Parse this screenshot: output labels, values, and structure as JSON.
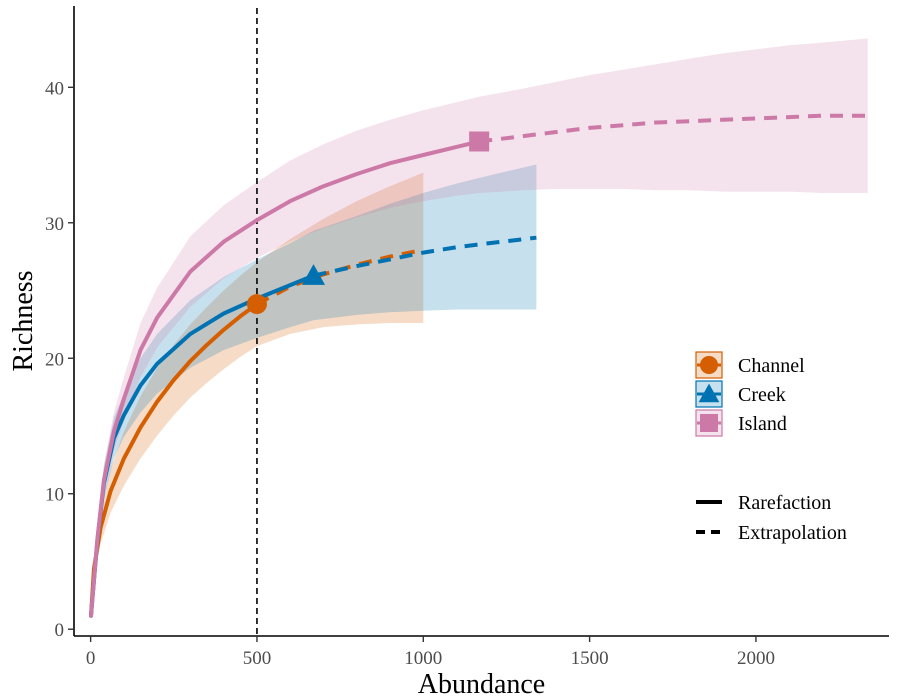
{
  "chart_data": {
    "type": "line",
    "title": "",
    "xlabel": "Abundance",
    "ylabel": "Richness",
    "xlim": [
      -50,
      2400
    ],
    "ylim": [
      -0.5,
      46
    ],
    "x_ticks": [
      0,
      500,
      1000,
      1500,
      2000
    ],
    "x_tick_labels": [
      "0",
      "500",
      "1000",
      "1500",
      "2000"
    ],
    "y_ticks": [
      0,
      10,
      20,
      30,
      40
    ],
    "y_tick_labels": [
      "0",
      "10",
      "20",
      "30",
      "40"
    ],
    "grid": false,
    "reference_line": {
      "x": 500,
      "style": "dashed",
      "color": "#000000"
    },
    "legend_placement": "right",
    "series": [
      {
        "name": "Channel",
        "color": "#D55E00",
        "marker": "circle",
        "observed_point": {
          "x": 500,
          "y": 24
        },
        "rarefaction": {
          "x": [
            1,
            10,
            30,
            60,
            100,
            150,
            200,
            250,
            300,
            350,
            400,
            450,
            500
          ],
          "y": [
            1,
            4.5,
            7.5,
            10.2,
            12.6,
            14.9,
            16.8,
            18.4,
            19.8,
            21.0,
            22.1,
            23.1,
            24.0
          ]
        },
        "extrapolation": {
          "x": [
            500,
            600,
            700,
            800,
            900,
            1000
          ],
          "y": [
            24.0,
            25.3,
            26.2,
            26.9,
            27.5,
            28.0
          ]
        },
        "ci": {
          "x": [
            1,
            10,
            30,
            60,
            100,
            150,
            200,
            250,
            300,
            350,
            400,
            450,
            500,
            600,
            700,
            800,
            900,
            1000
          ],
          "lower": [
            1,
            3.8,
            6.3,
            8.6,
            10.6,
            12.6,
            14.3,
            15.8,
            17.1,
            18.2,
            19.2,
            20.1,
            20.9,
            21.8,
            22.3,
            22.5,
            22.6,
            22.6
          ],
          "upper": [
            1,
            5.2,
            8.7,
            11.8,
            14.6,
            17.2,
            19.3,
            21.0,
            22.5,
            23.8,
            25.0,
            26.1,
            27.1,
            28.8,
            30.3,
            31.6,
            32.7,
            33.7
          ]
        }
      },
      {
        "name": "Creek",
        "color": "#0072B2",
        "marker": "triangle",
        "observed_point": {
          "x": 670,
          "y": 26.1
        },
        "rarefaction": {
          "x": [
            1,
            20,
            40,
            70,
            100,
            150,
            200,
            300,
            400,
            500,
            600,
            670
          ],
          "y": [
            1,
            6.5,
            10.8,
            14.1,
            15.8,
            18.0,
            19.6,
            21.8,
            23.3,
            24.4,
            25.4,
            26.1
          ]
        },
        "extrapolation": {
          "x": [
            670,
            800,
            900,
            1000,
            1100,
            1200,
            1340
          ],
          "y": [
            26.1,
            26.8,
            27.3,
            27.8,
            28.2,
            28.5,
            28.9
          ]
        },
        "ci": {
          "x": [
            1,
            20,
            40,
            70,
            100,
            150,
            200,
            300,
            400,
            500,
            600,
            670,
            800,
            900,
            1000,
            1100,
            1200,
            1340
          ],
          "lower": [
            1,
            5.6,
            9.6,
            12.6,
            14.2,
            16.0,
            17.4,
            19.3,
            20.6,
            21.5,
            22.3,
            22.8,
            23.2,
            23.4,
            23.5,
            23.6,
            23.6,
            23.6
          ],
          "upper": [
            1,
            7.4,
            12.0,
            15.6,
            17.4,
            20.0,
            21.8,
            24.3,
            26.0,
            27.3,
            28.5,
            29.4,
            30.5,
            31.4,
            32.2,
            32.9,
            33.5,
            34.3
          ]
        }
      },
      {
        "name": "Island",
        "color": "#CC79A7",
        "marker": "square",
        "observed_point": {
          "x": 1168,
          "y": 36
        },
        "rarefaction": {
          "x": [
            1,
            20,
            40,
            70,
            100,
            150,
            200,
            300,
            400,
            500,
            600,
            700,
            800,
            900,
            1000,
            1100,
            1168
          ],
          "y": [
            1,
            6.6,
            11.0,
            14.6,
            17.0,
            20.6,
            23.0,
            26.4,
            28.6,
            30.2,
            31.6,
            32.7,
            33.6,
            34.4,
            35.0,
            35.6,
            36.0
          ]
        },
        "extrapolation": {
          "x": [
            1168,
            1300,
            1400,
            1500,
            1600,
            1700,
            1800,
            1900,
            2000,
            2100,
            2200,
            2336
          ],
          "y": [
            36.0,
            36.4,
            36.7,
            37.0,
            37.2,
            37.4,
            37.5,
            37.6,
            37.7,
            37.8,
            37.9,
            37.9
          ]
        },
        "ci": {
          "x": [
            1,
            20,
            40,
            70,
            100,
            150,
            200,
            300,
            400,
            500,
            600,
            700,
            800,
            900,
            1000,
            1100,
            1168,
            1300,
            1400,
            1500,
            1600,
            1700,
            1800,
            1900,
            2000,
            2100,
            2200,
            2336
          ],
          "lower": [
            1,
            5.8,
            9.8,
            13.2,
            15.4,
            18.6,
            20.8,
            23.8,
            25.9,
            27.4,
            28.6,
            29.6,
            30.4,
            31.1,
            31.6,
            32.0,
            32.2,
            32.4,
            32.5,
            32.5,
            32.5,
            32.4,
            32.4,
            32.3,
            32.3,
            32.3,
            32.2,
            32.2
          ],
          "upper": [
            1,
            7.4,
            12.2,
            16.0,
            18.6,
            22.6,
            25.2,
            29.0,
            31.3,
            33.0,
            34.6,
            35.8,
            36.8,
            37.6,
            38.3,
            38.9,
            39.3,
            39.9,
            40.4,
            40.9,
            41.3,
            41.7,
            42.1,
            42.5,
            42.8,
            43.1,
            43.3,
            43.6
          ]
        }
      }
    ],
    "legend_lines": [
      {
        "label": "Rarefaction",
        "style": "solid"
      },
      {
        "label": "Extrapolation",
        "style": "dashed"
      }
    ]
  }
}
